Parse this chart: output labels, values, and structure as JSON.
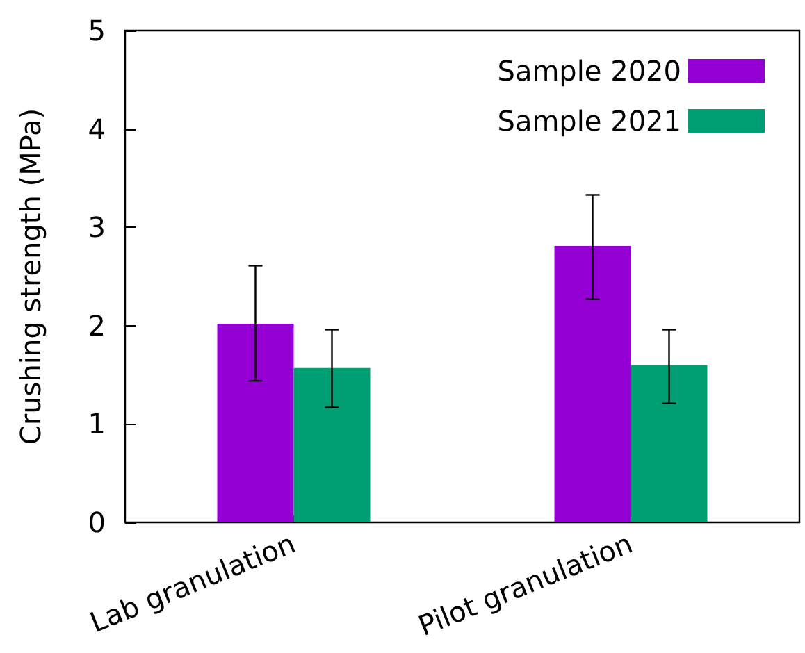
{
  "chart_data": {
    "type": "bar",
    "ylabel": "Crushing strength (MPa)",
    "categories": [
      "Lab granulation",
      "Pilot granulation"
    ],
    "series": [
      {
        "name": "Sample 2020",
        "color": "#9400d3",
        "values": [
          2.02,
          2.81
        ],
        "errors": [
          [
            1.44,
            2.61
          ],
          [
            2.27,
            3.33
          ]
        ]
      },
      {
        "name": "Sample 2021",
        "color": "#009e73",
        "values": [
          1.57,
          1.6
        ],
        "errors": [
          [
            1.17,
            1.96
          ],
          [
            1.21,
            1.96
          ]
        ]
      }
    ],
    "ylim": [
      0,
      5
    ],
    "yticks": [
      0,
      1,
      2,
      3,
      4,
      5
    ],
    "grid": false,
    "legend": "top right"
  }
}
